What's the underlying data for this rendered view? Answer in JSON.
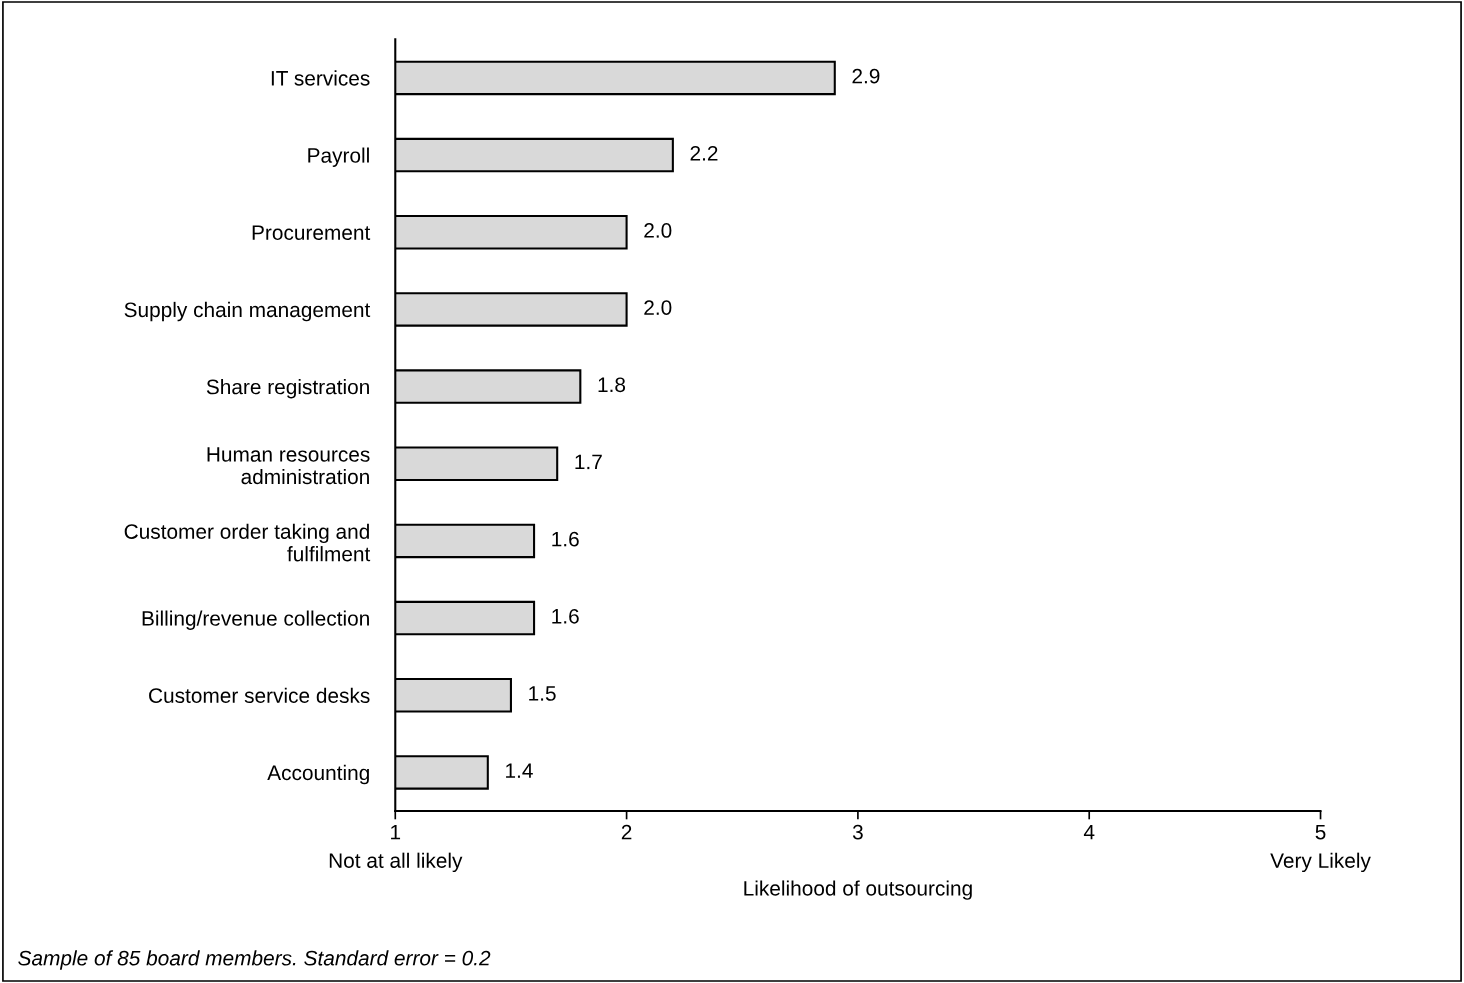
{
  "chart_data": {
    "type": "bar",
    "orientation": "horizontal",
    "xlabel": "Likelihood of outsourcing",
    "categories": [
      "IT services",
      "Payroll",
      "Procurement",
      "Supply chain management",
      "Share registration",
      "Human resources\nadministration",
      "Customer order taking and\nfulfilment",
      "Billing/revenue collection",
      "Customer service desks",
      "Accounting"
    ],
    "values": [
      2.9,
      2.2,
      2.0,
      2.0,
      1.8,
      1.7,
      1.6,
      1.6,
      1.5,
      1.4
    ],
    "value_labels": [
      "2.9",
      "2.2",
      "2.0",
      "2.0",
      "1.8",
      "1.7",
      "1.6",
      "1.6",
      "1.5",
      "1.4"
    ],
    "color": "#d9d9d9",
    "xlim": [
      1,
      5
    ],
    "xticks": [
      {
        "value": 1,
        "label": "1\nNot at all likely"
      },
      2,
      3,
      4,
      {
        "value": 5,
        "label": "5\nVery Likely"
      }
    ],
    "grid": false,
    "annotations": [
      "Sample of 85 board members. Standard error = 0.2"
    ]
  }
}
